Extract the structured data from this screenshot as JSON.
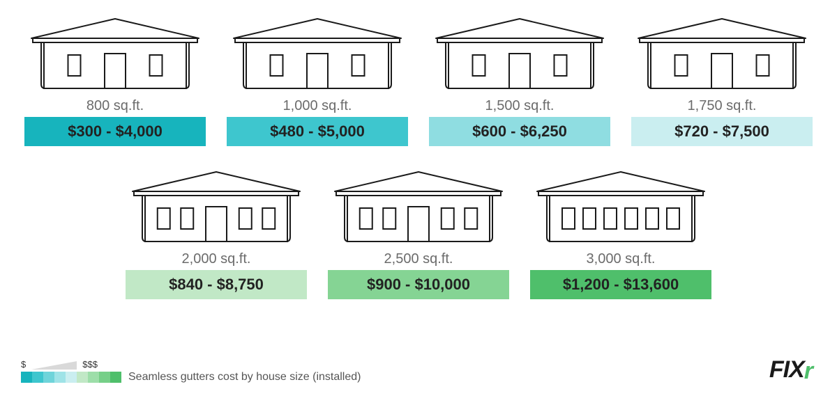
{
  "infographic": {
    "type": "infographic",
    "caption": "Seamless gutters cost by house size (installed)",
    "house_stroke": "#1a1a1a",
    "house_stroke_width": 2,
    "house_fill": "#ffffff",
    "label_color": "#6b6b6b",
    "label_fontsize": 20,
    "price_fontsize": 22,
    "price_text_color": "#222222",
    "background_color": "#ffffff",
    "row1": [
      {
        "size": "800 sq.ft.",
        "price": "$300 - $4,000",
        "bg": "#17b4bd",
        "windows": 2,
        "door": true
      },
      {
        "size": "1,000 sq.ft.",
        "price": "$480 - $5,000",
        "bg": "#3ec6ce",
        "windows": 2,
        "door": true
      },
      {
        "size": "1,500 sq.ft.",
        "price": "$600 - $6,250",
        "bg": "#8fdde1",
        "windows": 2,
        "door": true
      },
      {
        "size": "1,750 sq.ft.",
        "price": "$720 - $7,500",
        "bg": "#caeef0",
        "windows": 2,
        "door": true
      }
    ],
    "row2": [
      {
        "size": "2,000 sq.ft.",
        "price": "$840 - $8,750",
        "bg": "#c1e8c6",
        "windows": 4,
        "door": true
      },
      {
        "size": "2,500 sq.ft.",
        "price": "$900 - $10,000",
        "bg": "#85d494",
        "windows": 4,
        "door": true
      },
      {
        "size": "3,000 sq.ft.",
        "price": "$1,200 - $13,600",
        "bg": "#4fbf6b",
        "windows": 6,
        "door": false
      }
    ],
    "legend": {
      "low": "$",
      "high": "$$$",
      "swatches": [
        "#17b4bd",
        "#3ec6ce",
        "#6fd4da",
        "#9fe3e7",
        "#caeef0",
        "#c1e8c6",
        "#9ddea9",
        "#76cf88",
        "#4fbf6b"
      ]
    },
    "brand": {
      "text": "FIX",
      "accent": "r",
      "accent_color": "#4fbf6b",
      "color": "#1a1a1a"
    }
  }
}
